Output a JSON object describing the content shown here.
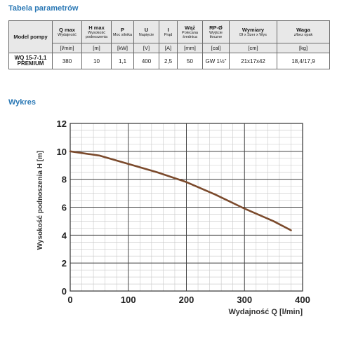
{
  "params": {
    "title": "Tabela parametrów",
    "headers": [
      {
        "main": "Model pompy",
        "sub": ""
      },
      {
        "main": "Q max",
        "sub": "Wydajność"
      },
      {
        "main": "H max",
        "sub": "Wysokość podnoszenia"
      },
      {
        "main": "P",
        "sub": "Moc silnika"
      },
      {
        "main": "U",
        "sub": "Napięcie"
      },
      {
        "main": "I",
        "sub": "Prąd"
      },
      {
        "main": "Wąż",
        "sub": "Polecana średnica"
      },
      {
        "main": "RP-Ø",
        "sub": "Wyjście tłoczne"
      },
      {
        "main": "Wymiary",
        "sub": "Dł x Szer x Wys"
      },
      {
        "main": "Waga",
        "sub": "z/bez opak"
      }
    ],
    "units": [
      "[l/min]",
      "[m]",
      "[kW]",
      "[V]",
      "[A]",
      "[mm]",
      "[cal]",
      "[cm]",
      "[kg]"
    ],
    "row": {
      "model": "WQ 15-7-1,1 PREMIUM",
      "values": [
        "380",
        "10",
        "1,1",
        "400",
        "2,5",
        "50",
        "GW 1½\"",
        "21x17x42",
        "18,4/17,9"
      ]
    }
  },
  "chart": {
    "section_title": "Wykres"
  },
  "chart_data": {
    "type": "line",
    "title": "",
    "xlabel": "Wydajność Q [l/min]",
    "ylabel": "Wysokość podnoszenia H [m]",
    "xlim": [
      0,
      400
    ],
    "ylim": [
      0,
      12
    ],
    "xticks": [
      0,
      100,
      200,
      300,
      400
    ],
    "yticks": [
      0,
      2,
      4,
      6,
      8,
      10,
      12
    ],
    "grid": true,
    "line_color": "#7b4a2c",
    "series": [
      {
        "x": [
          0,
          50,
          100,
          150,
          200,
          250,
          300,
          350,
          380
        ],
        "y": [
          10,
          9.7,
          9.1,
          8.5,
          7.8,
          6.9,
          5.9,
          5.0,
          4.35
        ]
      }
    ]
  }
}
